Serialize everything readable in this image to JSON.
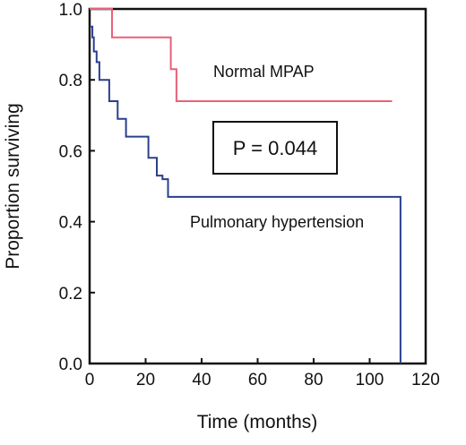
{
  "chart_data": {
    "type": "line",
    "step": true,
    "title": "",
    "xlabel": "Time (months)",
    "ylabel": "Proportion surviving",
    "xlim": [
      0,
      120
    ],
    "ylim": [
      0.0,
      1.0
    ],
    "x_ticks": [
      0,
      20,
      40,
      60,
      80,
      100,
      120
    ],
    "y_ticks": [
      "0.0",
      "0.2",
      "0.4",
      "0.6",
      "0.8",
      "1.0"
    ],
    "grid": false,
    "legend": "none",
    "series": [
      {
        "name": "Normal MPAP",
        "color": "#e8607a",
        "points": [
          [
            0,
            1.0
          ],
          [
            8,
            1.0
          ],
          [
            8,
            0.92
          ],
          [
            29,
            0.92
          ],
          [
            29,
            0.83
          ],
          [
            31,
            0.83
          ],
          [
            31,
            0.74
          ],
          [
            108,
            0.74
          ]
        ]
      },
      {
        "name": "Pulmonary hypertension",
        "color": "#2b3f8c",
        "points": [
          [
            0,
            0.95
          ],
          [
            1,
            0.95
          ],
          [
            1,
            0.92
          ],
          [
            1.5,
            0.92
          ],
          [
            1.5,
            0.88
          ],
          [
            2.5,
            0.88
          ],
          [
            2.5,
            0.85
          ],
          [
            3.5,
            0.85
          ],
          [
            3.5,
            0.8
          ],
          [
            7,
            0.8
          ],
          [
            7,
            0.74
          ],
          [
            10,
            0.74
          ],
          [
            10,
            0.69
          ],
          [
            13,
            0.69
          ],
          [
            13,
            0.64
          ],
          [
            21,
            0.64
          ],
          [
            21,
            0.58
          ],
          [
            24,
            0.58
          ],
          [
            24,
            0.53
          ],
          [
            26,
            0.53
          ],
          [
            26,
            0.52
          ],
          [
            28,
            0.52
          ],
          [
            28,
            0.47
          ],
          [
            111,
            0.47
          ],
          [
            111,
            0.0
          ]
        ]
      }
    ],
    "annotations": {
      "normal_label": "Normal MPAP",
      "ph_label": "Pulmonary hypertension",
      "p_value": "P = 0.044"
    }
  }
}
